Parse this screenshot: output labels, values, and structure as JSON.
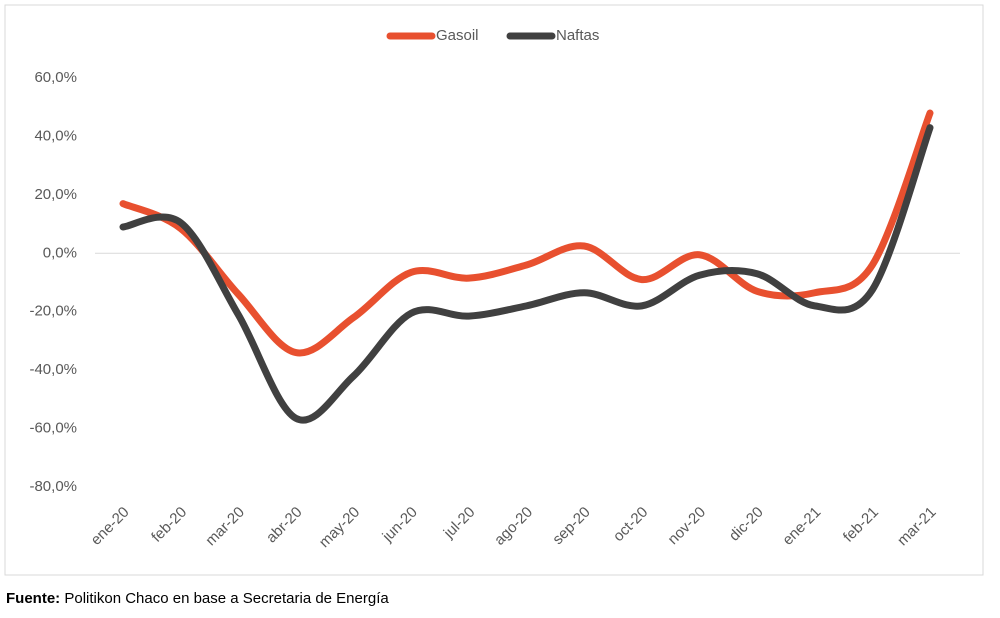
{
  "chart_data": {
    "type": "line",
    "categories": [
      "ene-20",
      "feb-20",
      "mar-20",
      "abr-20",
      "may-20",
      "jun-20",
      "jul-20",
      "ago-20",
      "sep-20",
      "oct-20",
      "nov-20",
      "dic-20",
      "ene-21",
      "feb-21",
      "mar-21"
    ],
    "series": [
      {
        "name": "Gasoil",
        "color": "#e8502f",
        "values": [
          17,
          8.5,
          -14,
          -34,
          -22,
          -6.5,
          -8.5,
          -4,
          2.5,
          -9,
          -0.5,
          -13,
          -13.5,
          -4,
          48
        ]
      },
      {
        "name": "Naftas",
        "color": "#404040",
        "values": [
          9,
          10.5,
          -21,
          -56.5,
          -42,
          -20.5,
          -21.5,
          -18,
          -13.5,
          -18,
          -7.5,
          -7,
          -18,
          -12.5,
          43
        ]
      }
    ],
    "ylim": [
      -80,
      60
    ],
    "yticks": [
      {
        "value": -80,
        "label": "-80,0%"
      },
      {
        "value": -60,
        "label": "-60,0%"
      },
      {
        "value": -40,
        "label": "-40,0%"
      },
      {
        "value": -20,
        "label": "-20,0%"
      },
      {
        "value": 0,
        "label": "0,0%"
      },
      {
        "value": 20,
        "label": "20,0%"
      },
      {
        "value": 40,
        "label": "40,0%"
      },
      {
        "value": 60,
        "label": "60,0%"
      }
    ],
    "grid": false,
    "legend": "top"
  },
  "source": {
    "label": "Fuente:",
    "text": "Politikon Chaco en base a Secretaria de Energía"
  }
}
